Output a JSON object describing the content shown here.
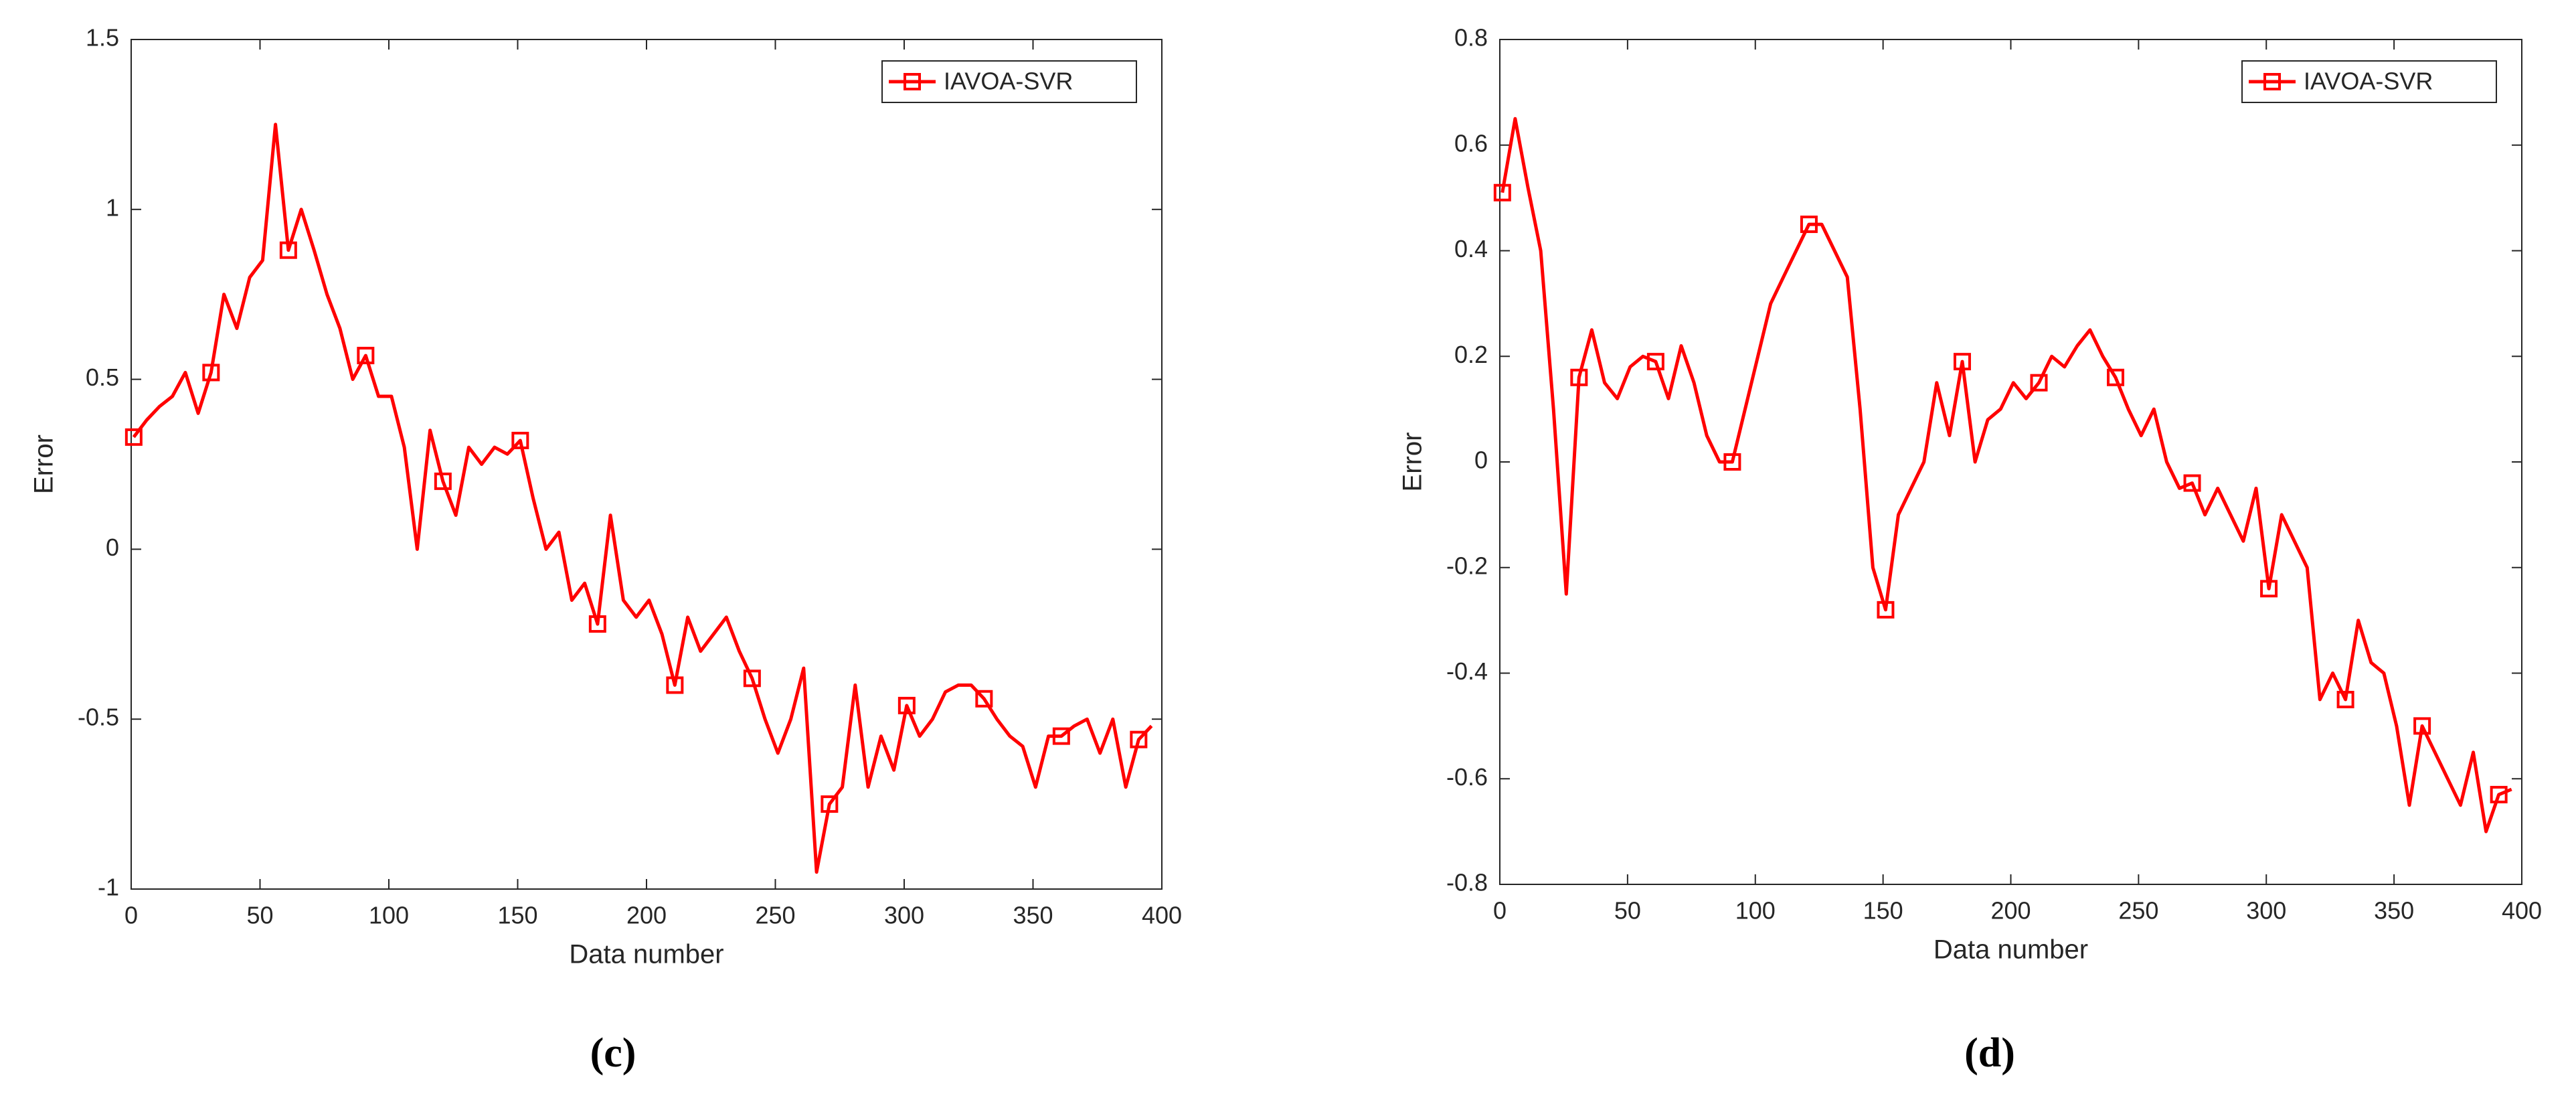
{
  "chart_data": [
    {
      "type": "line",
      "caption": "(c)",
      "xlabel": "Data number",
      "ylabel": "Error",
      "xlim": [
        0,
        400
      ],
      "xticks": [
        0,
        50,
        100,
        150,
        200,
        250,
        300,
        350,
        400
      ],
      "ylim": [
        -1,
        1.5
      ],
      "yticks": [
        -1,
        -0.5,
        0,
        0.5,
        1,
        1.5
      ],
      "legend": "northeast",
      "marker": "square",
      "marker_every": 6,
      "x": [
        1,
        6,
        11,
        16,
        21,
        26,
        31,
        36,
        41,
        46,
        51,
        56,
        61,
        66,
        71,
        76,
        81,
        86,
        91,
        96,
        101,
        106,
        111,
        116,
        121,
        126,
        131,
        136,
        141,
        146,
        151,
        156,
        161,
        166,
        171,
        176,
        181,
        186,
        191,
        196,
        201,
        206,
        211,
        216,
        221,
        226,
        231,
        236,
        241,
        246,
        251,
        256,
        261,
        266,
        271,
        276,
        281,
        286,
        291,
        296,
        301,
        306,
        311,
        316,
        321,
        326,
        331,
        336,
        341,
        346,
        351,
        356,
        361,
        366,
        371,
        376,
        381,
        386,
        391,
        396
      ],
      "series": [
        {
          "name": "IAVOA-SVR",
          "color": "#ff0000",
          "values": [
            0.33,
            0.38,
            0.42,
            0.45,
            0.52,
            0.4,
            0.52,
            0.75,
            0.65,
            0.8,
            0.85,
            1.25,
            0.88,
            1.0,
            0.88,
            0.75,
            0.65,
            0.5,
            0.57,
            0.45,
            0.45,
            0.3,
            0.0,
            0.35,
            0.2,
            0.1,
            0.3,
            0.25,
            0.3,
            0.28,
            0.32,
            0.15,
            0.0,
            0.05,
            -0.15,
            -0.1,
            -0.22,
            0.1,
            -0.15,
            -0.2,
            -0.15,
            -0.25,
            -0.4,
            -0.2,
            -0.3,
            -0.25,
            -0.2,
            -0.3,
            -0.38,
            -0.5,
            -0.6,
            -0.5,
            -0.35,
            -0.95,
            -0.75,
            -0.7,
            -0.4,
            -0.7,
            -0.55,
            -0.65,
            -0.46,
            -0.55,
            -0.5,
            -0.42,
            -0.4,
            -0.4,
            -0.44,
            -0.5,
            -0.55,
            -0.58,
            -0.7,
            -0.55,
            -0.55,
            -0.52,
            -0.5,
            -0.6,
            -0.5,
            -0.7,
            -0.56,
            -0.52
          ]
        }
      ]
    },
    {
      "type": "line",
      "caption": "(d)",
      "xlabel": "Data number",
      "ylabel": "Error",
      "xlim": [
        0,
        400
      ],
      "xticks": [
        0,
        50,
        100,
        150,
        200,
        250,
        300,
        350,
        400
      ],
      "ylim": [
        -0.8,
        0.8
      ],
      "yticks": [
        -0.8,
        -0.6,
        -0.4,
        -0.2,
        0,
        0.2,
        0.4,
        0.6,
        0.8
      ],
      "legend": "northeast",
      "marker": "square",
      "marker_every": 6,
      "x": [
        1,
        6,
        11,
        16,
        21,
        26,
        31,
        36,
        41,
        46,
        51,
        56,
        61,
        66,
        71,
        76,
        81,
        86,
        91,
        96,
        101,
        106,
        111,
        116,
        121,
        126,
        131,
        136,
        141,
        146,
        151,
        156,
        161,
        166,
        171,
        176,
        181,
        186,
        191,
        196,
        201,
        206,
        211,
        216,
        221,
        226,
        231,
        236,
        241,
        246,
        251,
        256,
        261,
        266,
        271,
        276,
        281,
        286,
        291,
        296,
        301,
        306,
        311,
        316,
        321,
        326,
        331,
        336,
        341,
        346,
        351,
        356,
        361,
        366,
        371,
        376,
        381,
        386,
        391,
        396
      ],
      "series": [
        {
          "name": "IAVOA-SVR",
          "color": "#ff0000",
          "values": [
            0.51,
            0.65,
            0.52,
            0.4,
            0.1,
            -0.25,
            0.16,
            0.25,
            0.15,
            0.12,
            0.18,
            0.2,
            0.19,
            0.12,
            0.22,
            0.15,
            0.05,
            0.0,
            0.0,
            0.1,
            0.2,
            0.3,
            0.35,
            0.4,
            0.45,
            0.45,
            0.4,
            0.35,
            0.1,
            -0.2,
            -0.28,
            -0.1,
            -0.05,
            0.0,
            0.15,
            0.05,
            0.19,
            0.0,
            0.08,
            0.1,
            0.15,
            0.12,
            0.15,
            0.2,
            0.18,
            0.22,
            0.25,
            0.2,
            0.16,
            0.1,
            0.05,
            0.1,
            0.0,
            -0.05,
            -0.04,
            -0.1,
            -0.05,
            -0.1,
            -0.15,
            -0.05,
            -0.24,
            -0.1,
            -0.15,
            -0.2,
            -0.45,
            -0.4,
            -0.45,
            -0.3,
            -0.38,
            -0.4,
            -0.5,
            -0.65,
            -0.5,
            -0.55,
            -0.6,
            -0.65,
            -0.55,
            -0.7,
            -0.63,
            -0.62
          ]
        }
      ]
    }
  ]
}
